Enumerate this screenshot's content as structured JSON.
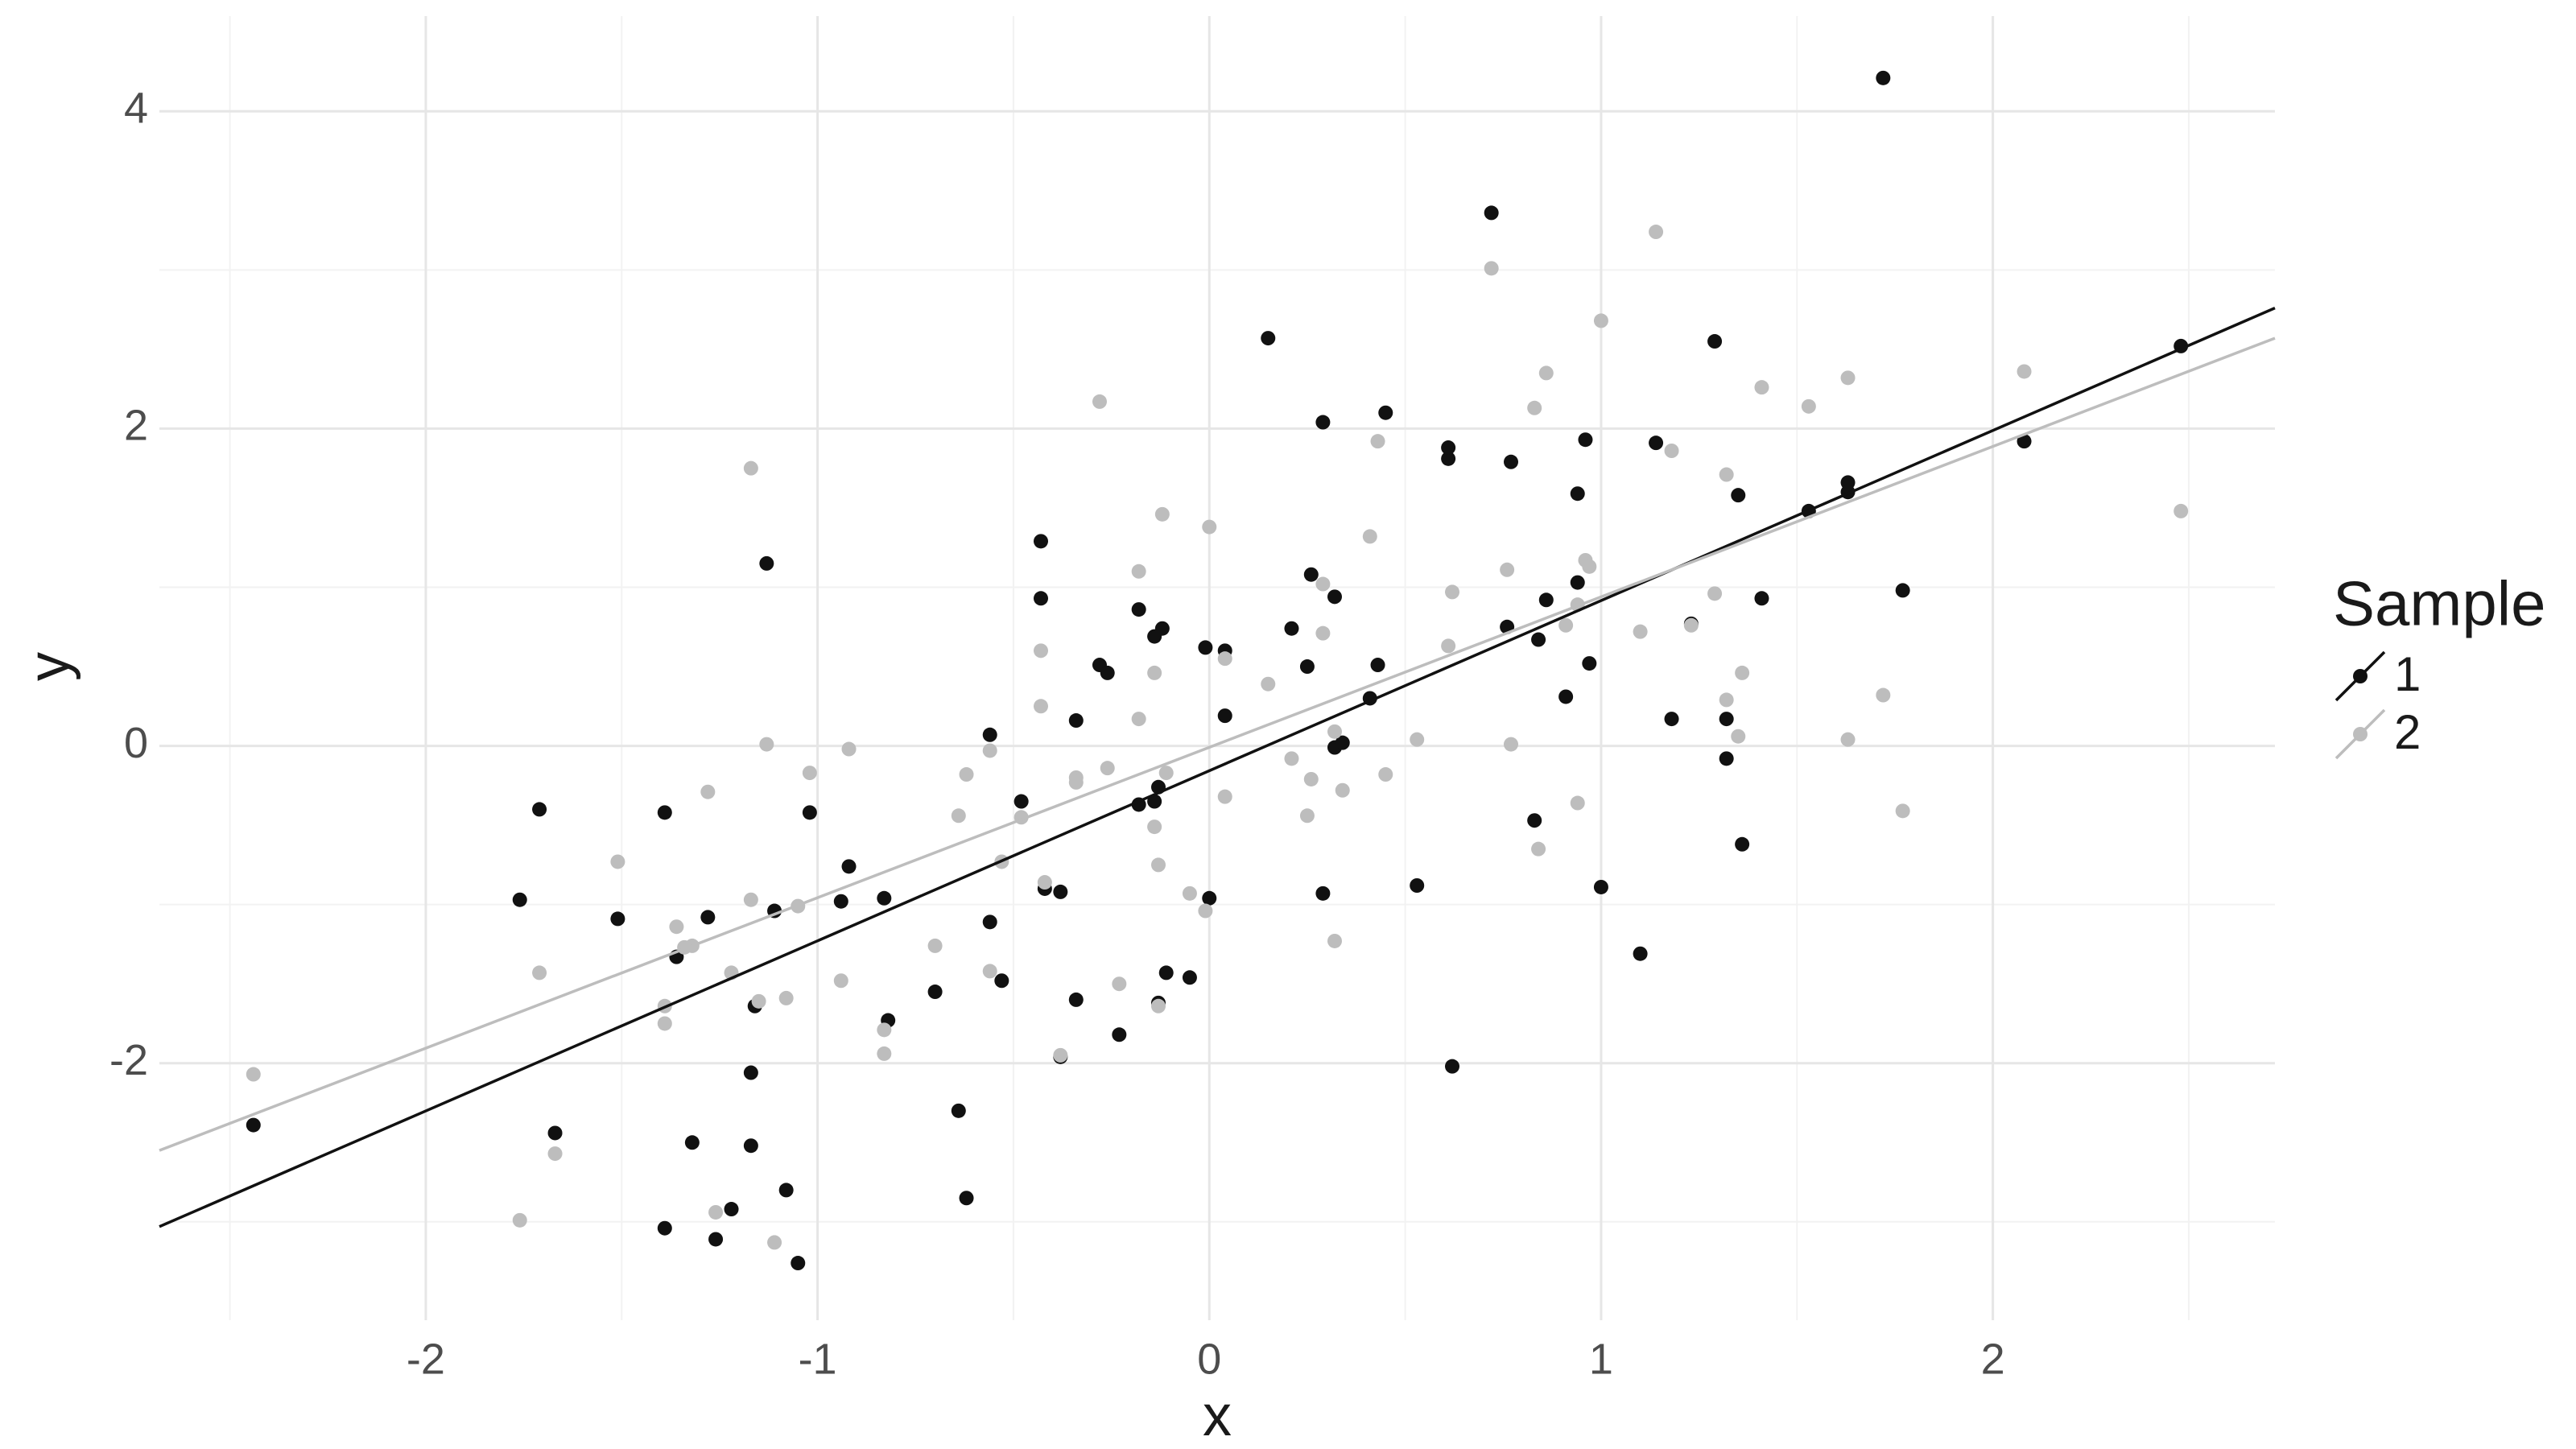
{
  "chart_data": {
    "type": "scatter",
    "x_label": "x",
    "y_label": "y",
    "legend_title": "Sample",
    "legend_position": "right",
    "grid": true,
    "xlim": [
      -2.68,
      2.72
    ],
    "ylim": [
      -3.62,
      4.6
    ],
    "xticks": [
      -2,
      -1,
      0,
      1,
      2
    ],
    "yticks": [
      -2,
      0,
      2,
      4
    ],
    "x_minor_grid": [
      -2.5,
      -1.5,
      -0.5,
      0.5,
      1.5,
      2.5
    ],
    "y_minor_grid": [
      -3,
      -1,
      1,
      3
    ],
    "series": [
      {
        "name": "1",
        "color": "#111111",
        "x": [
          -2.44,
          -1.76,
          -1.71,
          -1.67,
          -1.51,
          -1.39,
          -1.39,
          -1.36,
          -1.32,
          -1.28,
          -1.26,
          -1.22,
          -1.17,
          -1.17,
          -1.16,
          -1.13,
          -1.11,
          -1.08,
          -1.05,
          -1.02,
          -0.94,
          -0.92,
          -0.83,
          -0.82,
          -0.7,
          -0.64,
          -0.62,
          -0.56,
          -0.56,
          -0.53,
          -0.48,
          -0.43,
          -0.43,
          -0.42,
          -0.38,
          -0.38,
          -0.34,
          -0.34,
          -0.28,
          -0.26,
          -0.23,
          -0.18,
          -0.18,
          -0.14,
          -0.14,
          -0.13,
          -0.13,
          -0.12,
          -0.11,
          -0.05,
          -0.01,
          0.0,
          0.04,
          0.04,
          0.15,
          0.21,
          0.25,
          0.26,
          0.29,
          0.29,
          0.32,
          0.32,
          0.34,
          0.41,
          0.43,
          0.45,
          0.53,
          0.61,
          0.61,
          0.62,
          0.72,
          0.76,
          0.77,
          0.83,
          0.84,
          0.86,
          0.91,
          0.94,
          0.94,
          0.96,
          0.97,
          1.0,
          1.1,
          1.14,
          1.18,
          1.23,
          1.29,
          1.32,
          1.32,
          1.35,
          1.36,
          1.41,
          1.53,
          1.63,
          1.63,
          1.72,
          1.77,
          2.08,
          2.48
        ],
        "values": [
          -2.39,
          -0.97,
          -0.4,
          -2.44,
          -1.09,
          -0.42,
          -3.04,
          -1.33,
          -2.5,
          -1.08,
          -3.11,
          -2.92,
          -2.06,
          -2.52,
          -1.64,
          1.15,
          -1.04,
          -2.8,
          -3.26,
          -0.42,
          -0.98,
          -0.76,
          -0.96,
          -1.73,
          -1.55,
          -2.3,
          -2.85,
          -1.11,
          0.07,
          -1.48,
          -0.35,
          1.29,
          0.93,
          -0.9,
          -0.92,
          -1.96,
          -1.6,
          0.16,
          0.51,
          0.46,
          -1.82,
          0.86,
          -0.37,
          0.69,
          -0.35,
          -0.26,
          -1.62,
          0.74,
          -1.43,
          -1.46,
          0.62,
          -0.96,
          0.6,
          0.19,
          2.57,
          0.74,
          0.5,
          1.08,
          2.04,
          -0.93,
          -0.01,
          0.94,
          0.02,
          0.3,
          0.51,
          2.1,
          -0.88,
          1.81,
          1.88,
          -2.02,
          3.36,
          0.75,
          1.79,
          -0.47,
          0.67,
          0.92,
          0.31,
          1.03,
          1.59,
          1.93,
          0.52,
          -0.89,
          -1.31,
          1.91,
          0.17,
          0.77,
          2.55,
          -0.08,
          0.17,
          1.58,
          -0.62,
          0.93,
          1.48,
          1.66,
          1.6,
          4.21,
          0.98,
          1.92,
          2.52
        ],
        "fit": {
          "x": [
            -2.68,
            2.72
          ],
          "y": [
            -3.03,
            2.76
          ]
        }
      },
      {
        "name": "2",
        "color": "#bdbdbd",
        "x": [
          -2.44,
          -1.76,
          -1.71,
          -1.67,
          -1.51,
          -1.39,
          -1.39,
          -1.36,
          -1.34,
          -1.32,
          -1.28,
          -1.26,
          -1.22,
          -1.17,
          -1.17,
          -1.15,
          -1.13,
          -1.11,
          -1.08,
          -1.05,
          -1.02,
          -0.94,
          -0.92,
          -0.83,
          -0.83,
          -0.7,
          -0.64,
          -0.62,
          -0.56,
          -0.56,
          -0.53,
          -0.48,
          -0.43,
          -0.43,
          -0.42,
          -0.38,
          -0.34,
          -0.34,
          -0.28,
          -0.26,
          -0.23,
          -0.18,
          -0.18,
          -0.14,
          -0.14,
          -0.13,
          -0.12,
          -0.11,
          -0.13,
          -0.05,
          -0.01,
          0.0,
          0.04,
          0.04,
          0.15,
          0.21,
          0.25,
          0.26,
          0.29,
          0.29,
          0.32,
          0.32,
          0.34,
          0.41,
          0.43,
          0.45,
          0.53,
          0.61,
          0.62,
          0.72,
          0.76,
          0.77,
          0.83,
          0.84,
          0.86,
          0.91,
          0.94,
          0.94,
          0.96,
          0.97,
          1.0,
          1.1,
          1.14,
          1.18,
          1.23,
          1.29,
          1.32,
          1.32,
          1.35,
          1.36,
          1.41,
          1.53,
          1.63,
          1.63,
          1.72,
          1.77,
          2.08,
          2.48
        ],
        "values": [
          -2.07,
          -2.99,
          -1.43,
          -2.57,
          -0.73,
          -1.75,
          -1.64,
          -1.14,
          -1.27,
          -1.26,
          -0.29,
          -2.94,
          -1.43,
          -0.97,
          1.75,
          -1.61,
          0.01,
          -3.13,
          -1.59,
          -1.01,
          -0.17,
          -1.48,
          -0.02,
          -1.79,
          -1.94,
          -1.26,
          -0.44,
          -0.18,
          -1.42,
          -0.03,
          -0.73,
          -0.45,
          0.6,
          0.25,
          -0.86,
          -1.95,
          -0.2,
          -0.23,
          2.17,
          -0.14,
          -1.5,
          1.1,
          0.17,
          -0.51,
          0.46,
          -0.75,
          1.46,
          -0.17,
          -1.64,
          -0.93,
          -1.04,
          1.38,
          0.55,
          -0.32,
          0.39,
          -0.08,
          -0.44,
          -0.21,
          0.71,
          1.02,
          -1.23,
          0.09,
          -0.28,
          1.32,
          1.92,
          -0.18,
          0.04,
          0.63,
          0.97,
          3.01,
          1.11,
          0.01,
          2.13,
          -0.65,
          2.35,
          0.76,
          0.89,
          -0.36,
          1.17,
          1.13,
          2.68,
          0.72,
          3.24,
          1.86,
          0.76,
          0.96,
          1.71,
          0.29,
          0.06,
          0.46,
          2.26,
          2.14,
          0.04,
          2.32,
          0.32,
          -0.41,
          2.36,
          1.48
        ],
        "fit": {
          "x": [
            -2.68,
            2.72
          ],
          "y": [
            -2.55,
            2.57
          ]
        }
      }
    ]
  }
}
